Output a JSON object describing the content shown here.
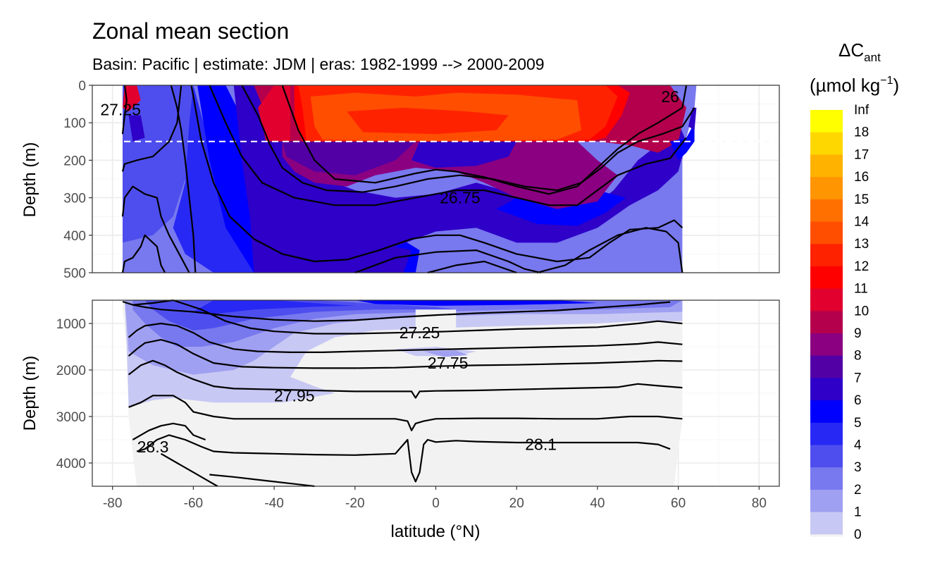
{
  "chart_data": {
    "type": "heatmap",
    "title": "Zonal mean section",
    "subtitle": "Basin: Pacific | estimate: JDM  | eras: 1982-1999 --> 2000-2009",
    "xlabel": "latitude (°N)",
    "ylabel": "Depth (m)",
    "xlim": [
      -85,
      85
    ],
    "x_ticks": [
      "-80",
      "-60",
      "-40",
      "-20",
      "0",
      "20",
      "40",
      "60",
      "80"
    ],
    "panels": [
      {
        "name": "upper",
        "ylim": [
          0,
          500
        ],
        "y_reversed": true,
        "y_ticks": [
          "0",
          "100",
          "200",
          "300",
          "400",
          "500"
        ],
        "y_tick_values": [
          0,
          100,
          200,
          300,
          400,
          500
        ],
        "reference_line_depth": 150,
        "isopycnal_labels": [
          {
            "text": "27.25",
            "lat": -78,
            "depth": 65
          },
          {
            "text": "26.75",
            "lat": 6,
            "depth": 300
          },
          {
            "text": "26",
            "lat": 58,
            "depth": 30
          }
        ]
      },
      {
        "name": "lower",
        "ylim": [
          500,
          4500
        ],
        "y_reversed": true,
        "y_ticks": [
          "1000",
          "2000",
          "3000",
          "4000"
        ],
        "y_tick_values": [
          1000,
          2000,
          3000,
          4000
        ],
        "isopycnal_labels": [
          {
            "text": "27.25",
            "lat": -4,
            "depth": 1200
          },
          {
            "text": "27.75",
            "lat": 3,
            "depth": 1850
          },
          {
            "text": "27.95",
            "lat": -35,
            "depth": 2550
          },
          {
            "text": "28.3",
            "lat": -70,
            "depth": 3650
          },
          {
            "text": "28.1",
            "lat": 26,
            "depth": 3600
          }
        ]
      }
    ],
    "legend": {
      "title_main": "ΔC",
      "title_sub": "ant",
      "unit": "(µmol kg",
      "unit_sup": "−1",
      "unit_close": ")",
      "labels": [
        "Inf",
        "18",
        "17",
        "16",
        "15",
        "14",
        "13",
        "12",
        "11",
        "10",
        "9",
        "8",
        "7",
        "6",
        "5",
        "4",
        "3",
        "2",
        "1",
        "0"
      ],
      "colors": [
        "#ffff00",
        "#ffd700",
        "#ffb300",
        "#ff9500",
        "#ff7000",
        "#ff4e00",
        "#ff2200",
        "#ff0000",
        "#e1002e",
        "#b4004c",
        "#8a0080",
        "#5200a6",
        "#2e00c8",
        "#0000ff",
        "#2828f4",
        "#4e4eee",
        "#7878ef",
        "#a0a0f2",
        "#c8c8f4",
        "#f2f2f2"
      ]
    }
  }
}
